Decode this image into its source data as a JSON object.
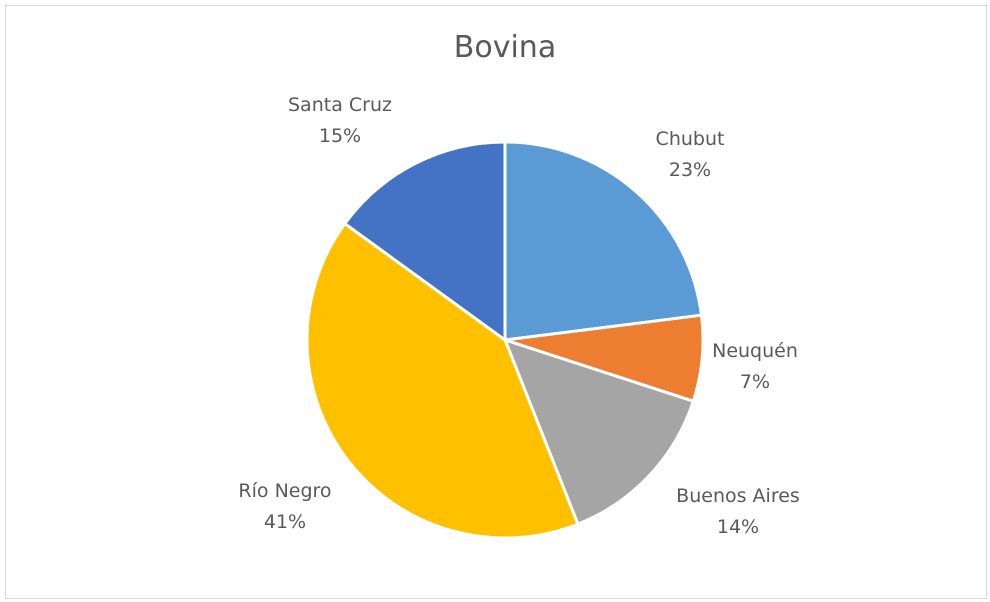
{
  "chart_data": {
    "type": "pie",
    "title": "Bovina",
    "slices": [
      {
        "label": "Chubut",
        "value": 23,
        "display": "23%",
        "color": "#5b9bd5"
      },
      {
        "label": "Neuquén",
        "value": 7,
        "display": "7%",
        "color": "#ed7d31"
      },
      {
        "label": "Buenos Aires",
        "value": 14,
        "display": "14%",
        "color": "#a5a5a5"
      },
      {
        "label": "Río Negro",
        "value": 41,
        "display": "41%",
        "color": "#ffc000"
      },
      {
        "label": "Santa Cruz",
        "value": 15,
        "display": "15%",
        "color": "#4472c4"
      }
    ],
    "legend": "none",
    "data_labels": "outside",
    "start_angle": 0,
    "direction": "clockwise"
  }
}
